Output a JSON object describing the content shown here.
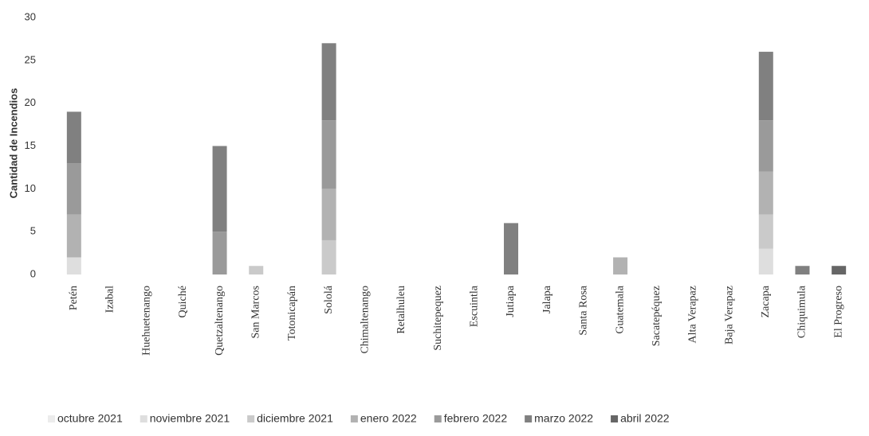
{
  "chart_data": {
    "type": "stacked_bar",
    "y_label": "Cantidad de Incendios",
    "categories": [
      "Petén",
      "Izabal",
      "Huehuetenango",
      "Quiché",
      "Quetzaltenango",
      "San Marcos",
      "Totonicapán",
      "Sololá",
      "Chimaltenango",
      "Retalhuleu",
      "Suchitepequez",
      "Escuintla",
      "Jutiapa",
      "Jalapa",
      "Santa Rosa",
      "Guatemala",
      "Sacatepéquez",
      "Alta Verapaz",
      "Baja Verapaz",
      "Zacapa",
      "Chiquimula",
      "El Progreso"
    ],
    "series": [
      {
        "name": "octubre 2021",
        "color": "#ececec",
        "values": [
          0,
          0,
          0,
          0,
          0,
          0,
          0,
          0,
          0,
          0,
          0,
          0,
          0,
          0,
          0,
          0,
          0,
          0,
          0,
          0,
          0,
          0
        ]
      },
      {
        "name": "noviembre 2021",
        "color": "#dedede",
        "values": [
          2,
          0,
          0,
          0,
          0,
          0,
          0,
          0,
          0,
          0,
          0,
          0,
          0,
          0,
          0,
          0,
          0,
          0,
          0,
          3,
          0,
          0
        ]
      },
      {
        "name": "diciembre 2021",
        "color": "#cacaca",
        "values": [
          0,
          0,
          0,
          0,
          0,
          1,
          0,
          4,
          0,
          0,
          0,
          0,
          0,
          0,
          0,
          0,
          0,
          0,
          0,
          4,
          0,
          0
        ]
      },
      {
        "name": "enero 2022",
        "color": "#b2b2b2",
        "values": [
          5,
          0,
          0,
          0,
          0,
          0,
          0,
          6,
          0,
          0,
          0,
          0,
          0,
          0,
          0,
          2,
          0,
          0,
          0,
          5,
          0,
          0
        ]
      },
      {
        "name": "febrero 2022",
        "color": "#9a9a9a",
        "values": [
          6,
          0,
          0,
          0,
          5,
          0,
          0,
          8,
          0,
          0,
          0,
          0,
          0,
          0,
          0,
          0,
          0,
          0,
          0,
          6,
          0,
          0
        ]
      },
      {
        "name": "marzo 2022",
        "color": "#808080",
        "values": [
          6,
          0,
          0,
          0,
          10,
          0,
          0,
          9,
          0,
          0,
          0,
          0,
          6,
          0,
          0,
          0,
          0,
          0,
          0,
          8,
          1,
          0
        ]
      },
      {
        "name": "abril 2022",
        "color": "#666666",
        "values": [
          0,
          0,
          0,
          0,
          0,
          0,
          0,
          0,
          0,
          0,
          0,
          0,
          0,
          0,
          0,
          0,
          0,
          0,
          0,
          0,
          0,
          1
        ]
      }
    ],
    "ylim": [
      0,
      30
    ],
    "yticks": [
      0,
      5,
      10,
      15,
      20,
      25,
      30
    ]
  }
}
